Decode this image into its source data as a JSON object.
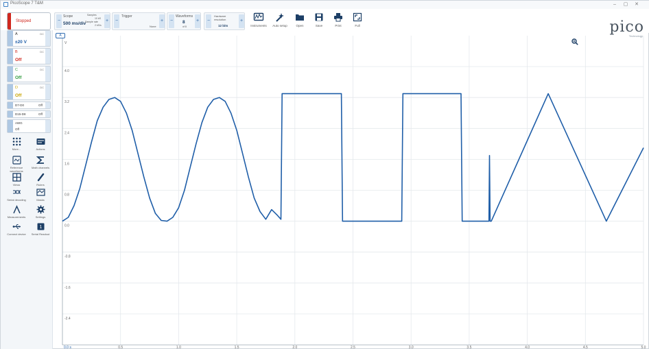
{
  "window": {
    "title": "PicoScope 7 T&M",
    "controls": [
      "–",
      "▢",
      "✕"
    ]
  },
  "run_button": {
    "label": "Stopped",
    "color": "#d0281e"
  },
  "scope_group": {
    "title": "Scope",
    "timebase": "500 ms/div",
    "samples_label": "Samples",
    "samples_value": "10 kS",
    "sample_rate_label": "Sample rate",
    "sample_rate_value": "2 kS/s"
  },
  "trigger_group": {
    "title": "Trigger",
    "mode": "None"
  },
  "waveforms_group": {
    "title": "Waveforms",
    "value": "8",
    "sub": "of 8"
  },
  "resolution_group": {
    "title": "Hardware resolution",
    "value": "12 bits"
  },
  "tools": [
    {
      "name": "instruments",
      "label": "Instruments"
    },
    {
      "name": "auto-setup",
      "label": "Auto setup"
    },
    {
      "name": "open",
      "label": "Open"
    },
    {
      "name": "save",
      "label": "Save"
    },
    {
      "name": "print",
      "label": "Print"
    },
    {
      "name": "full",
      "label": "Full"
    }
  ],
  "logo": {
    "text": "pico",
    "sub": "Technology"
  },
  "channels": [
    {
      "name": "A",
      "value": "±20 V",
      "color": "#1f5ea8"
    },
    {
      "name": "B",
      "value": "Off",
      "color": "#d0281e"
    },
    {
      "name": "C",
      "value": "Off",
      "color": "#2e9a3c"
    },
    {
      "name": "D",
      "value": "Off",
      "color": "#c9a400"
    }
  ],
  "digital": [
    {
      "name": "D7-D0",
      "value": "Off"
    },
    {
      "name": "D15-D8",
      "value": "Off"
    }
  ],
  "awg": {
    "name": "AWG",
    "value": "Off"
  },
  "panel_tools": [
    {
      "name": "more",
      "label": "More..."
    },
    {
      "name": "actions",
      "label": "Actions"
    },
    {
      "name": "reference-waveforms",
      "label": "Reference waveforms"
    },
    {
      "name": "math-channels",
      "label": "Math channels"
    },
    {
      "name": "views",
      "label": "Views"
    },
    {
      "name": "rulers",
      "label": "Rulers"
    },
    {
      "name": "serial-decoding",
      "label": "Serial decoding"
    },
    {
      "name": "masks",
      "label": "Masks"
    },
    {
      "name": "measurements",
      "label": "Measurements"
    },
    {
      "name": "settings",
      "label": "Settings"
    },
    {
      "name": "connect-device",
      "label": "Connect device"
    },
    {
      "name": "serial-read",
      "label": "Serial Readout"
    }
  ],
  "accent_color": "#1f5ea8",
  "chart_data": {
    "type": "line",
    "channel_badge": "A",
    "x_origin_label": "0.0 s",
    "y_unit_label": "V",
    "xlim": [
      0,
      5.0
    ],
    "ylim": [
      -3.2,
      4.8
    ],
    "x_ticks": [
      "0.5",
      "1.0",
      "1.5",
      "2.0",
      "2.5",
      "3.0",
      "3.5",
      "4.0",
      "4.5",
      "5.0"
    ],
    "y_ticks": [
      "4.0",
      "3.2",
      "2.4",
      "1.6",
      "0.8",
      "0.0",
      "-0.8",
      "-1.6",
      "-2.4"
    ],
    "grid": true,
    "series": [
      {
        "color": "#1f5ea8",
        "x": [
          0.0,
          0.05,
          0.1,
          0.15,
          0.2,
          0.25,
          0.3,
          0.35,
          0.4,
          0.45,
          0.5,
          0.55,
          0.6,
          0.65,
          0.7,
          0.75,
          0.8,
          0.85,
          0.9,
          0.95,
          1.0,
          1.05,
          1.1,
          1.15,
          1.2,
          1.25,
          1.3,
          1.35,
          1.4,
          1.45,
          1.5,
          1.55,
          1.6,
          1.65,
          1.7,
          1.75,
          1.8,
          1.85,
          1.88,
          1.89,
          1.9,
          1.91,
          2.4,
          2.41,
          2.92,
          2.93,
          3.43,
          3.44,
          3.67,
          3.675,
          3.68,
          3.685,
          3.69,
          4.18,
          4.68,
          5.0
        ],
        "y": [
          0.0,
          0.1,
          0.4,
          0.85,
          1.45,
          2.05,
          2.6,
          2.95,
          3.15,
          3.2,
          3.1,
          2.8,
          2.35,
          1.75,
          1.15,
          0.6,
          0.2,
          0.02,
          0.0,
          0.1,
          0.35,
          0.8,
          1.4,
          2.0,
          2.55,
          2.95,
          3.15,
          3.2,
          3.1,
          2.8,
          2.35,
          1.75,
          1.15,
          0.6,
          0.25,
          0.05,
          0.3,
          0.15,
          0.05,
          3.3,
          3.3,
          3.3,
          3.3,
          0.0,
          0.0,
          3.3,
          3.3,
          0.0,
          0.0,
          1.7,
          0.0,
          0.0,
          0.0,
          3.3,
          0.0,
          1.9
        ]
      }
    ]
  }
}
